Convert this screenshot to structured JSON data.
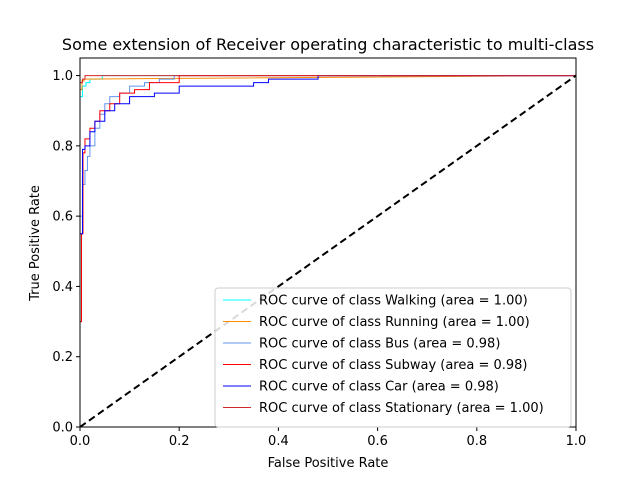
{
  "chart_data": {
    "type": "line",
    "title": "Some extension of Receiver operating characteristic to multi-class",
    "xlabel": "False Positive Rate",
    "ylabel": "True Positive Rate",
    "xlim": [
      0.0,
      1.0
    ],
    "ylim": [
      0.0,
      1.05
    ],
    "xticks": [
      0.0,
      0.2,
      0.4,
      0.6,
      0.8,
      1.0
    ],
    "xtick_labels": [
      "0.0",
      "0.2",
      "0.4",
      "0.6",
      "0.8",
      "1.0"
    ],
    "yticks": [
      0.0,
      0.2,
      0.4,
      0.6,
      0.8,
      1.0
    ],
    "ytick_labels": [
      "0.0",
      "0.2",
      "0.4",
      "0.6",
      "0.8",
      "1.0"
    ],
    "legend_position": "lower-right",
    "series": [
      {
        "name": "ROC curve of class Walking (area = 1.00)",
        "color": "#00ffff",
        "x": [
          0.0,
          0.0,
          0.005,
          0.005,
          0.012,
          0.012,
          0.02,
          0.02,
          0.045,
          0.045,
          1.0
        ],
        "y": [
          0.0,
          0.94,
          0.94,
          0.97,
          0.97,
          0.98,
          0.98,
          0.99,
          0.99,
          1.0,
          1.0
        ]
      },
      {
        "name": "ROC curve of class Running (area = 1.00)",
        "color": "#ff8c00",
        "x": [
          0.0,
          0.0,
          0.004,
          0.004,
          0.008,
          0.008,
          1.0
        ],
        "y": [
          0.0,
          0.96,
          0.96,
          0.985,
          0.985,
          0.99,
          1.0
        ]
      },
      {
        "name": "ROC curve of class Bus (area = 0.98)",
        "color": "#6495ed",
        "x": [
          0.0,
          0.0,
          0.005,
          0.005,
          0.01,
          0.01,
          0.015,
          0.015,
          0.02,
          0.02,
          0.03,
          0.03,
          0.04,
          0.04,
          0.05,
          0.05,
          0.06,
          0.06,
          0.08,
          0.08,
          0.1,
          0.1,
          0.13,
          0.13,
          0.16,
          0.16,
          0.19,
          0.19,
          1.0
        ],
        "y": [
          0.0,
          0.6,
          0.6,
          0.69,
          0.69,
          0.73,
          0.73,
          0.77,
          0.77,
          0.8,
          0.8,
          0.85,
          0.85,
          0.89,
          0.89,
          0.92,
          0.92,
          0.94,
          0.94,
          0.95,
          0.95,
          0.97,
          0.97,
          0.98,
          0.98,
          0.99,
          0.99,
          1.0,
          1.0
        ]
      },
      {
        "name": "ROC curve of class Subway (area = 0.98)",
        "color": "#ff0000",
        "x": [
          0.0,
          0.0,
          0.003,
          0.003,
          0.006,
          0.006,
          0.01,
          0.01,
          0.02,
          0.02,
          0.03,
          0.03,
          0.04,
          0.04,
          0.06,
          0.06,
          0.08,
          0.08,
          0.11,
          0.11,
          0.14,
          0.14,
          0.2,
          0.2,
          1.0
        ],
        "y": [
          0.0,
          0.3,
          0.3,
          0.55,
          0.55,
          0.78,
          0.78,
          0.82,
          0.82,
          0.85,
          0.85,
          0.87,
          0.87,
          0.9,
          0.9,
          0.92,
          0.92,
          0.95,
          0.95,
          0.96,
          0.96,
          0.98,
          0.98,
          1.0,
          1.0
        ]
      },
      {
        "name": "ROC curve of class Car (area = 0.98)",
        "color": "#0000ff",
        "x": [
          0.0,
          0.0,
          0.005,
          0.005,
          0.01,
          0.01,
          0.02,
          0.02,
          0.03,
          0.03,
          0.05,
          0.05,
          0.07,
          0.07,
          0.1,
          0.1,
          0.15,
          0.15,
          0.2,
          0.2,
          0.35,
          0.35,
          0.38,
          0.38,
          0.48,
          0.48,
          1.0
        ],
        "y": [
          0.0,
          0.55,
          0.55,
          0.79,
          0.79,
          0.8,
          0.8,
          0.84,
          0.84,
          0.87,
          0.87,
          0.9,
          0.9,
          0.92,
          0.92,
          0.94,
          0.94,
          0.95,
          0.95,
          0.97,
          0.97,
          0.98,
          0.98,
          0.99,
          0.99,
          1.0,
          1.0
        ]
      },
      {
        "name": "ROC curve of class Stationary (area = 1.00)",
        "color": "#d62728",
        "x": [
          0.0,
          0.0,
          0.005,
          0.005,
          0.01,
          0.01,
          1.0
        ],
        "y": [
          0.0,
          0.98,
          0.98,
          0.99,
          0.99,
          1.0,
          1.0
        ]
      }
    ],
    "diagonal": {
      "x": [
        0.0,
        1.0
      ],
      "y": [
        0.0,
        1.0
      ],
      "color": "#000000",
      "style": "dashed"
    }
  }
}
